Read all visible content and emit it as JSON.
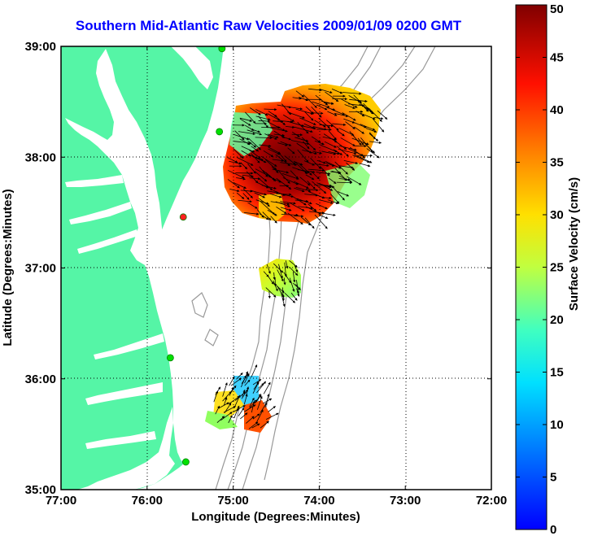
{
  "chart_data": {
    "type": "heatmap",
    "title": "Southern Mid-Atlantic Raw Velocities 2009/01/09 0200 GMT",
    "xlabel": "Longitude (Degrees:Minutes)",
    "ylabel": "Latitude (Degrees:Minutes)",
    "x_ticks": [
      {
        "value": -77,
        "label": "77:00"
      },
      {
        "value": -76,
        "label": "76:00"
      },
      {
        "value": -75,
        "label": "75:00"
      },
      {
        "value": -74,
        "label": "74:00"
      },
      {
        "value": -73,
        "label": "73:00"
      },
      {
        "value": -72,
        "label": "72:00"
      }
    ],
    "y_ticks": [
      {
        "value": 35,
        "label": "35:00"
      },
      {
        "value": 36,
        "label": "36:00"
      },
      {
        "value": 37,
        "label": "37:00"
      },
      {
        "value": 38,
        "label": "38:00"
      },
      {
        "value": 39,
        "label": "39:00"
      }
    ],
    "xlim": [
      -77,
      -72
    ],
    "ylim": [
      35,
      39
    ],
    "grid": "dotted",
    "colorbar": {
      "label": "Surface Velocity (cm/s)",
      "min": 0,
      "max": 50,
      "ticks": [
        {
          "value": 0,
          "label": "0"
        },
        {
          "value": 5,
          "label": "5"
        },
        {
          "value": 10,
          "label": "10"
        },
        {
          "value": 15,
          "label": "15"
        },
        {
          "value": 20,
          "label": "20"
        },
        {
          "value": 25,
          "label": "25"
        },
        {
          "value": 30,
          "label": "30"
        },
        {
          "value": 35,
          "label": "35"
        },
        {
          "value": 40,
          "label": "40"
        },
        {
          "value": 45,
          "label": "45"
        },
        {
          "value": 50,
          "label": "50"
        }
      ],
      "colormap": "jet"
    },
    "colors": {
      "land": "#55f5a6",
      "water": "#ffffff",
      "bathymetry": "#999999",
      "station": "#00e000",
      "station_alt": "#ff2020",
      "title": "#0000ff"
    },
    "stations": [
      {
        "lon": -75.13,
        "lat": 38.98,
        "status": "active"
      },
      {
        "lon": -75.16,
        "lat": 38.23,
        "status": "active"
      },
      {
        "lon": -75.58,
        "lat": 37.46,
        "status": "alt"
      },
      {
        "lon": -75.73,
        "lat": 36.19,
        "status": "active"
      },
      {
        "lon": -75.55,
        "lat": 35.25,
        "status": "active"
      }
    ],
    "velocity_regions": [
      {
        "name": "north",
        "lon": [
          -75.2,
          -73.9
        ],
        "lat": [
          37.45,
          38.5
        ],
        "speed_range": [
          15,
          50
        ]
      },
      {
        "name": "middle",
        "lon": [
          -74.65,
          -74.35
        ],
        "lat": [
          36.78,
          37.05
        ],
        "speed_range": [
          20,
          30
        ]
      },
      {
        "name": "south",
        "lon": [
          -75.25,
          -74.6
        ],
        "lat": [
          35.5,
          36.05
        ],
        "speed_range": [
          10,
          45
        ]
      }
    ]
  }
}
